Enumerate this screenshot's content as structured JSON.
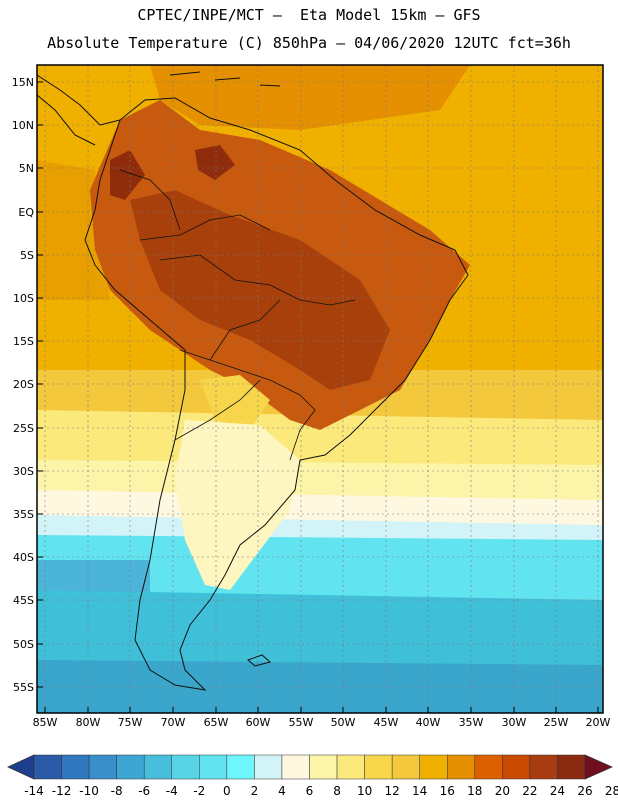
{
  "header": {
    "line1": "CPTEC/INPE/MCT –  Eta Model 15km – GFS",
    "line2": "Absolute Temperature (C) 850hPa – 04/06/2020 12UTC fct=36h"
  },
  "map": {
    "lat_labels": [
      "15N",
      "10N",
      "5N",
      "EQ",
      "5S",
      "10S",
      "15S",
      "20S",
      "25S",
      "30S",
      "35S",
      "40S",
      "45S",
      "50S",
      "55S"
    ],
    "lon_labels": [
      "85W",
      "80W",
      "75W",
      "70W",
      "65W",
      "60W",
      "55W",
      "50W",
      "45W",
      "40W",
      "35W",
      "30W",
      "25W",
      "20W"
    ],
    "regions": [
      {
        "name": "ocean-north",
        "color": "#f0b000"
      },
      {
        "name": "caribbean-warm",
        "color": "#e49000"
      },
      {
        "name": "pacific-tropical",
        "color": "#e8a000"
      },
      {
        "name": "continent-hot",
        "color": "#c85a10"
      },
      {
        "name": "amazon-core",
        "color": "#a8400c"
      },
      {
        "name": "andes-peaks",
        "color": "#8e2c0c"
      },
      {
        "name": "subtropic-orange",
        "color": "#f0b000"
      },
      {
        "name": "gold-band",
        "color": "#f4c83c"
      },
      {
        "name": "yellow-band",
        "color": "#fbe97c"
      },
      {
        "name": "pale-yellow",
        "color": "#fcf4a8"
      },
      {
        "name": "cream-band",
        "color": "#fff8e0"
      },
      {
        "name": "argentina-pale",
        "color": "#fdf6c0"
      },
      {
        "name": "chaco-warm",
        "color": "#f7d64c"
      },
      {
        "name": "light-cyan-band",
        "color": "#d2f4f8"
      },
      {
        "name": "cyan-band",
        "color": "#62e4f0"
      },
      {
        "name": "deep-cyan-south",
        "color": "#40bfd8"
      },
      {
        "name": "pacific-blue",
        "color": "#4bb4d8"
      },
      {
        "name": "blue-far-south",
        "color": "#3aa6cc"
      }
    ]
  },
  "colorbar": {
    "colors": [
      "#1e3e8e",
      "#2a5aa8",
      "#2f78bd",
      "#3a8fcb",
      "#3ea6d2",
      "#46bedc",
      "#58d4e4",
      "#62e4f0",
      "#6ef6fc",
      "#d2f4f8",
      "#fff8e0",
      "#fcf4a8",
      "#fbe97c",
      "#f7d64c",
      "#f4c83c",
      "#f0b000",
      "#e49000",
      "#dc6000",
      "#c84a00",
      "#a83c10",
      "#8a2a10",
      "#700e20"
    ],
    "labels": [
      "-14",
      "-12",
      "-10",
      "-8",
      "-6",
      "-4",
      "-2",
      "0",
      "2",
      "4",
      "6",
      "8",
      "10",
      "12",
      "14",
      "16",
      "18",
      "20",
      "22",
      "24",
      "26",
      "28"
    ]
  }
}
